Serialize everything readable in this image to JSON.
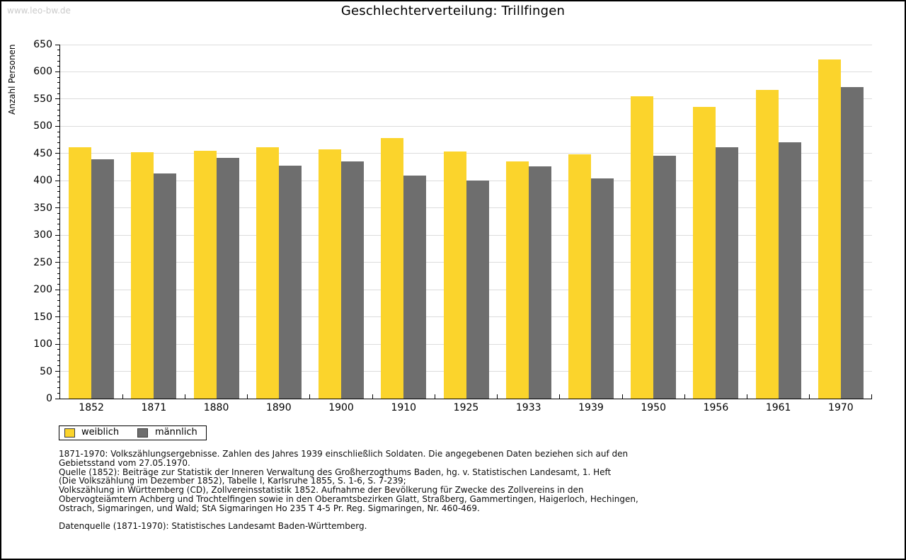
{
  "page": {
    "watermark": "www.leo-bw.de",
    "title": "Geschlechterverteilung: Trillfingen"
  },
  "chart_data": {
    "type": "bar",
    "title": "Geschlechterverteilung: Trillfingen",
    "xlabel": "",
    "ylabel": "Anzahl Personen",
    "categories": [
      "1852",
      "1871",
      "1880",
      "1890",
      "1900",
      "1910",
      "1925",
      "1933",
      "1939",
      "1950",
      "1956",
      "1961",
      "1970"
    ],
    "series": [
      {
        "name": "weiblich",
        "color": "#fbd42c",
        "values": [
          461,
          452,
          455,
          461,
          457,
          478,
          454,
          435,
          448,
          555,
          535,
          567,
          623
        ]
      },
      {
        "name": "männlich",
        "color": "#6e6e6e",
        "values": [
          440,
          414,
          442,
          428,
          435,
          409,
          400,
          426,
          404,
          446,
          461,
          471,
          572
        ]
      }
    ],
    "ylim": [
      0,
      650
    ],
    "ytick_major_step": 50,
    "ytick_minor_step": 10,
    "grid": true,
    "grid_color": "#dcdcdc",
    "legend_position": "bottom-left"
  },
  "legend": {
    "items": [
      {
        "label": "weiblich",
        "color": "#fbd42c"
      },
      {
        "label": "männlich",
        "color": "#6e6e6e"
      }
    ]
  },
  "footer": {
    "lines": [
      "1871-1970: Volkszählungsergebnisse. Zahlen des Jahres 1939 einschließlich Soldaten. Die angegebenen Daten beziehen sich auf den",
      "Gebietsstand vom 27.05.1970.",
      "Quelle (1852): Beiträge zur Statistik der Inneren Verwaltung des Großherzogthums Baden, hg. v. Statistischen Landesamt, 1. Heft",
      "(Die Volkszählung im Dezember 1852), Tabelle I, Karlsruhe 1855, S. 1-6, S. 7-239;",
      "Volkszählung in Württemberg (CD), Zollvereinsstatistik 1852. Aufnahme der Bevölkerung für Zwecke des Zollvereins in den",
      "Obervogteiämtern Achberg und Trochtelfingen sowie in den Oberamtsbezirken Glatt, Straßberg, Gammertingen, Haigerloch, Hechingen,",
      "Ostrach, Sigmaringen, und Wald; StA Sigmaringen Ho 235 T 4-5 Pr. Reg. Sigmaringen, Nr. 460-469.",
      "",
      "Datenquelle (1871-1970): Statistisches Landesamt Baden-Württemberg."
    ]
  }
}
